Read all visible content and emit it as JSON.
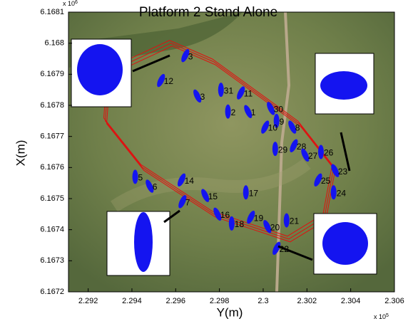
{
  "chart_data": {
    "type": "scatter",
    "title": "Platform 2 Stand Alone",
    "x_label": "Y(m)",
    "y_label": "X(m)",
    "x_scale_label": {
      "base": "x 10",
      "power": "5"
    },
    "y_scale_label": {
      "base": "x 10",
      "power": "6"
    },
    "xlim": [
      2.2911,
      2.306
    ],
    "ylim": [
      6.1672,
      6.1681
    ],
    "xticks": [
      2.292,
      2.294,
      2.296,
      2.298,
      2.3,
      2.302,
      2.304,
      2.306
    ],
    "yticks": [
      6.1672,
      6.1673,
      6.1674,
      6.1675,
      6.1676,
      6.1677,
      6.1678,
      6.1679,
      6.168,
      6.1681
    ],
    "points": {
      "color": "#1414f0",
      "labels": [
        "1",
        "2",
        "3",
        "3",
        "31",
        "11",
        "30",
        "9",
        "10",
        "8",
        "29",
        "28",
        "27",
        "26",
        "25",
        "23",
        "24",
        "12",
        "6",
        "5",
        "14",
        "15",
        "17",
        "7",
        "16",
        "18",
        "19",
        "20",
        "21",
        "22"
      ],
      "x": [
        2.29931,
        2.29839,
        2.29644,
        2.29699,
        2.29807,
        2.29898,
        2.30035,
        2.30061,
        2.30009,
        2.30133,
        2.30055,
        2.3014,
        2.30192,
        2.30264,
        2.30251,
        2.30329,
        2.30322,
        2.29533,
        2.29481,
        2.29415,
        2.29627,
        2.29735,
        2.29921,
        2.29631,
        2.29791,
        2.29856,
        2.29944,
        2.30019,
        2.30107,
        2.30061
      ],
      "y": [
        6.16778,
        6.16778,
        6.16796,
        6.16783,
        6.16785,
        6.16784,
        6.16779,
        6.16775,
        6.16773,
        6.16773,
        6.16766,
        6.16767,
        6.16764,
        6.16765,
        6.16756,
        6.16759,
        6.16752,
        6.16788,
        6.16754,
        6.16757,
        6.16756,
        6.16751,
        6.16752,
        6.16749,
        6.16745,
        6.16742,
        6.16744,
        6.16741,
        6.16743,
        6.16734
      ]
    },
    "trajectory": {
      "color": "#e01010",
      "x": [
        2.29285,
        2.29334,
        2.29578,
        2.29774,
        2.30166,
        2.30322,
        2.3028,
        2.30117,
        2.29774,
        2.29448,
        2.29278,
        2.29285
      ],
      "y": [
        6.16782,
        6.16792,
        6.168,
        6.16794,
        6.16774,
        6.1676,
        6.16744,
        6.16737,
        6.16745,
        6.1676,
        6.16775,
        6.16782
      ]
    }
  }
}
